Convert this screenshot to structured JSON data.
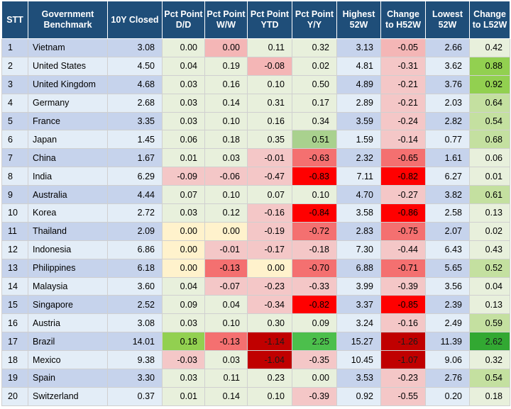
{
  "headers": [
    "STT",
    "Government Benchmark",
    "10Y Closed",
    "Pct Point D/D",
    "Pct Point W/W",
    "Pct Point YTD",
    "Pct Point Y/Y",
    "Highest 52W",
    "Change to H52W",
    "Lowest 52W",
    "Change to L52W"
  ],
  "rows": [
    [
      "1",
      "Vietnam",
      "3.08",
      "0.00",
      "0.00",
      "0.11",
      "0.32",
      "3.13",
      "-0.05",
      "2.66",
      "0.42"
    ],
    [
      "2",
      "United States",
      "4.50",
      "0.04",
      "0.19",
      "-0.08",
      "0.02",
      "4.81",
      "-0.31",
      "3.62",
      "0.88"
    ],
    [
      "3",
      "United Kingdom",
      "4.68",
      "0.03",
      "0.16",
      "0.10",
      "0.50",
      "4.89",
      "-0.21",
      "3.76",
      "0.92"
    ],
    [
      "4",
      "Germany",
      "2.68",
      "0.03",
      "0.14",
      "0.31",
      "0.17",
      "2.89",
      "-0.21",
      "2.03",
      "0.64"
    ],
    [
      "5",
      "France",
      "3.35",
      "0.03",
      "0.10",
      "0.16",
      "0.34",
      "3.59",
      "-0.24",
      "2.82",
      "0.54"
    ],
    [
      "6",
      "Japan",
      "1.45",
      "0.06",
      "0.18",
      "0.35",
      "0.51",
      "1.59",
      "-0.14",
      "0.77",
      "0.68"
    ],
    [
      "7",
      "China",
      "1.67",
      "0.01",
      "0.03",
      "-0.01",
      "-0.63",
      "2.32",
      "-0.65",
      "1.61",
      "0.06"
    ],
    [
      "8",
      "India",
      "6.29",
      "-0.09",
      "-0.06",
      "-0.47",
      "-0.83",
      "7.11",
      "-0.82",
      "6.27",
      "0.01"
    ],
    [
      "9",
      "Australia",
      "4.44",
      "0.07",
      "0.10",
      "0.07",
      "0.10",
      "4.70",
      "-0.27",
      "3.82",
      "0.61"
    ],
    [
      "10",
      "Korea",
      "2.72",
      "0.03",
      "0.12",
      "-0.16",
      "-0.84",
      "3.58",
      "-0.86",
      "2.58",
      "0.13"
    ],
    [
      "11",
      "Thailand",
      "2.09",
      "0.00",
      "0.00",
      "-0.19",
      "-0.72",
      "2.83",
      "-0.75",
      "2.07",
      "0.02"
    ],
    [
      "12",
      "Indonesia",
      "6.86",
      "0.00",
      "-0.01",
      "-0.17",
      "-0.18",
      "7.30",
      "-0.44",
      "6.43",
      "0.43"
    ],
    [
      "13",
      "Philippines",
      "6.18",
      "0.00",
      "-0.13",
      "0.00",
      "-0.70",
      "6.88",
      "-0.71",
      "5.65",
      "0.52"
    ],
    [
      "14",
      "Malaysia",
      "3.60",
      "0.04",
      "-0.07",
      "-0.23",
      "-0.33",
      "3.99",
      "-0.39",
      "3.56",
      "0.04"
    ],
    [
      "15",
      "Singapore",
      "2.52",
      "0.09",
      "0.04",
      "-0.34",
      "-0.82",
      "3.37",
      "-0.85",
      "2.39",
      "0.13"
    ],
    [
      "16",
      "Austria",
      "3.08",
      "0.03",
      "0.10",
      "0.30",
      "0.09",
      "3.24",
      "-0.16",
      "2.49",
      "0.59"
    ],
    [
      "17",
      "Brazil",
      "14.01",
      "0.18",
      "-0.13",
      "-1.14",
      "2.25",
      "15.27",
      "-1.26",
      "11.39",
      "2.62"
    ],
    [
      "18",
      "Mexico",
      "9.38",
      "-0.03",
      "0.03",
      "-1.04",
      "-0.35",
      "10.45",
      "-1.07",
      "9.06",
      "0.32"
    ],
    [
      "19",
      "Spain",
      "3.30",
      "0.03",
      "0.11",
      "0.23",
      "0.00",
      "3.53",
      "-0.23",
      "2.76",
      "0.54"
    ],
    [
      "20",
      "Switzerland",
      "0.37",
      "0.01",
      "0.14",
      "0.10",
      "-0.39",
      "0.92",
      "-0.55",
      "0.20",
      "0.18"
    ]
  ],
  "cell_colors": [
    [
      "#c6d3ec",
      "#c6d3ec",
      "#c6d3ec",
      "#e8f0dc",
      "#f4b6b6",
      "#e8f0dc",
      "#e8f0dc",
      "#c6d3ec",
      "#f4b6b6",
      "#c6d3ec",
      "#e8f0dc"
    ],
    [
      "#e3edf7",
      "#e3edf7",
      "#e3edf7",
      "#e8f0dc",
      "#e8f0dc",
      "#f4b6b6",
      "#e8f0dc",
      "#e3edf7",
      "#f4c7c7",
      "#e3edf7",
      "#92d050"
    ],
    [
      "#c6d3ec",
      "#c6d3ec",
      "#c6d3ec",
      "#e8f0dc",
      "#e8f0dc",
      "#e8f0dc",
      "#e8f0dc",
      "#c6d3ec",
      "#f4c7c7",
      "#c6d3ec",
      "#92d050"
    ],
    [
      "#e3edf7",
      "#e3edf7",
      "#e3edf7",
      "#e8f0dc",
      "#e8f0dc",
      "#e8f0dc",
      "#e8f0dc",
      "#e3edf7",
      "#f4c7c7",
      "#e3edf7",
      "#c4e0a0"
    ],
    [
      "#c6d3ec",
      "#c6d3ec",
      "#c6d3ec",
      "#e8f0dc",
      "#e8f0dc",
      "#e8f0dc",
      "#e8f0dc",
      "#c6d3ec",
      "#f4c7c7",
      "#c6d3ec",
      "#c4e0a0"
    ],
    [
      "#e3edf7",
      "#e3edf7",
      "#e3edf7",
      "#e8f0dc",
      "#e8f0dc",
      "#e8f0dc",
      "#a9d18e",
      "#e3edf7",
      "#f4c7c7",
      "#e3edf7",
      "#c4e0a0"
    ],
    [
      "#c6d3ec",
      "#c6d3ec",
      "#c6d3ec",
      "#e8f0dc",
      "#e8f0dc",
      "#f4c7c7",
      "#f47070",
      "#c6d3ec",
      "#f47070",
      "#c6d3ec",
      "#e8f0dc"
    ],
    [
      "#e3edf7",
      "#e3edf7",
      "#e3edf7",
      "#f4c7c7",
      "#f4c7c7",
      "#f4c7c7",
      "#ff0000",
      "#e3edf7",
      "#ff0000",
      "#e3edf7",
      "#e8f0dc"
    ],
    [
      "#c6d3ec",
      "#c6d3ec",
      "#c6d3ec",
      "#e8f0dc",
      "#e8f0dc",
      "#e8f0dc",
      "#e8f0dc",
      "#c6d3ec",
      "#f4c7c7",
      "#c6d3ec",
      "#c4e0a0"
    ],
    [
      "#e3edf7",
      "#e3edf7",
      "#e3edf7",
      "#e8f0dc",
      "#e8f0dc",
      "#f4c7c7",
      "#ff0000",
      "#e3edf7",
      "#ff0000",
      "#e3edf7",
      "#e8f0dc"
    ],
    [
      "#c6d3ec",
      "#c6d3ec",
      "#c6d3ec",
      "#fff2cc",
      "#fff2cc",
      "#f4c7c7",
      "#f47070",
      "#c6d3ec",
      "#f47070",
      "#c6d3ec",
      "#e8f0dc"
    ],
    [
      "#e3edf7",
      "#e3edf7",
      "#e3edf7",
      "#fff2cc",
      "#f4c7c7",
      "#f4c7c7",
      "#f4c7c7",
      "#e3edf7",
      "#f4c7c7",
      "#e3edf7",
      "#e8f0dc"
    ],
    [
      "#c6d3ec",
      "#c6d3ec",
      "#c6d3ec",
      "#fff2cc",
      "#f47070",
      "#fff2cc",
      "#f47070",
      "#c6d3ec",
      "#f47070",
      "#c6d3ec",
      "#c4e0a0"
    ],
    [
      "#e3edf7",
      "#e3edf7",
      "#e3edf7",
      "#e8f0dc",
      "#f4c7c7",
      "#f4c7c7",
      "#f4c7c7",
      "#e3edf7",
      "#f4c7c7",
      "#e3edf7",
      "#e8f0dc"
    ],
    [
      "#c6d3ec",
      "#c6d3ec",
      "#c6d3ec",
      "#e8f0dc",
      "#e8f0dc",
      "#f4c7c7",
      "#ff0000",
      "#c6d3ec",
      "#ff0000",
      "#c6d3ec",
      "#e8f0dc"
    ],
    [
      "#e3edf7",
      "#e3edf7",
      "#e3edf7",
      "#e8f0dc",
      "#e8f0dc",
      "#e8f0dc",
      "#e8f0dc",
      "#e3edf7",
      "#f4c7c7",
      "#e3edf7",
      "#c4e0a0"
    ],
    [
      "#c6d3ec",
      "#c6d3ec",
      "#c6d3ec",
      "#92d050",
      "#f47070",
      "#c00000",
      "#4cbf4c",
      "#c6d3ec",
      "#c00000",
      "#c6d3ec",
      "#32a832"
    ],
    [
      "#e3edf7",
      "#e3edf7",
      "#e3edf7",
      "#f4c7c7",
      "#e8f0dc",
      "#c00000",
      "#f4c7c7",
      "#e3edf7",
      "#c00000",
      "#e3edf7",
      "#e8f0dc"
    ],
    [
      "#c6d3ec",
      "#c6d3ec",
      "#c6d3ec",
      "#e8f0dc",
      "#e8f0dc",
      "#e8f0dc",
      "#e8f0dc",
      "#c6d3ec",
      "#f4c7c7",
      "#c6d3ec",
      "#c4e0a0"
    ],
    [
      "#e3edf7",
      "#e3edf7",
      "#e3edf7",
      "#e8f0dc",
      "#e8f0dc",
      "#e8f0dc",
      "#f4c7c7",
      "#e3edf7",
      "#f4c7c7",
      "#e3edf7",
      "#e8f0dc"
    ]
  ]
}
